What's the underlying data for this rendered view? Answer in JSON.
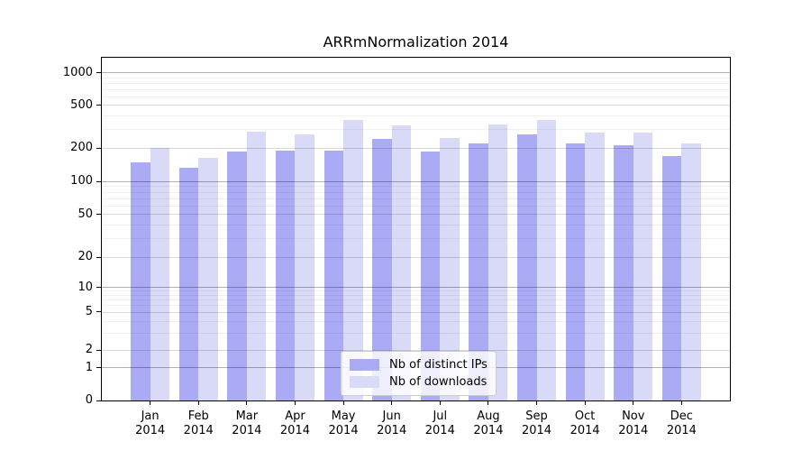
{
  "title": "ARRmNormalization 2014",
  "chart_data": {
    "type": "bar",
    "title": "ARRmNormalization 2014",
    "categories": [
      "Jan",
      "Feb",
      "Mar",
      "Apr",
      "May",
      "Jun",
      "Jul",
      "Aug",
      "Sep",
      "Oct",
      "Nov",
      "Dec"
    ],
    "x_year": "2014",
    "series": [
      {
        "name": "Nb of distinct IPs",
        "color": "#aaaaf5",
        "values": [
          150,
          133,
          187,
          188,
          189,
          243,
          185,
          219,
          266,
          219,
          212,
          168
        ]
      },
      {
        "name": "Nb of downloads",
        "color": "#d9d9f8",
        "values": [
          202,
          164,
          281,
          266,
          362,
          322,
          246,
          333,
          365,
          280,
          280,
          219
        ]
      }
    ],
    "y_ticks": [
      {
        "label": "0",
        "value": 0
      },
      {
        "label": "1",
        "value": 1
      },
      {
        "label": "2",
        "value": 2
      },
      {
        "label": "5",
        "value": 5
      },
      {
        "label": "10",
        "value": 10
      },
      {
        "label": "20",
        "value": 20
      },
      {
        "label": "50",
        "value": 50
      },
      {
        "label": "100",
        "value": 100
      },
      {
        "label": "200",
        "value": 200
      },
      {
        "label": "500",
        "value": 500
      },
      {
        "label": "1000",
        "value": 1000
      }
    ],
    "major_tick_values": [
      1,
      10,
      100,
      1000
    ],
    "minor_tick_values": [
      3,
      4,
      6,
      7,
      8,
      9,
      30,
      40,
      60,
      70,
      80,
      90,
      300,
      400,
      600,
      700,
      800,
      900
    ],
    "y_scale": "log above 1, linear 0-1",
    "y_scale_anchors": [
      [
        0,
        0
      ],
      [
        1,
        0.0955
      ],
      [
        2,
        0.1466
      ],
      [
        5,
        0.2579
      ],
      [
        10,
        0.3297
      ],
      [
        20,
        0.4184
      ],
      [
        50,
        0.5429
      ],
      [
        100,
        0.6387
      ],
      [
        200,
        0.7368
      ],
      [
        500,
        0.8613
      ],
      [
        1000,
        0.9555
      ]
    ],
    "grid": true,
    "legend": {
      "position": "lower center",
      "items": [
        {
          "label": "Nb of distinct IPs",
          "color": "#aaaaf5"
        },
        {
          "label": "Nb of downloads",
          "color": "#d9d9f8"
        }
      ]
    }
  }
}
